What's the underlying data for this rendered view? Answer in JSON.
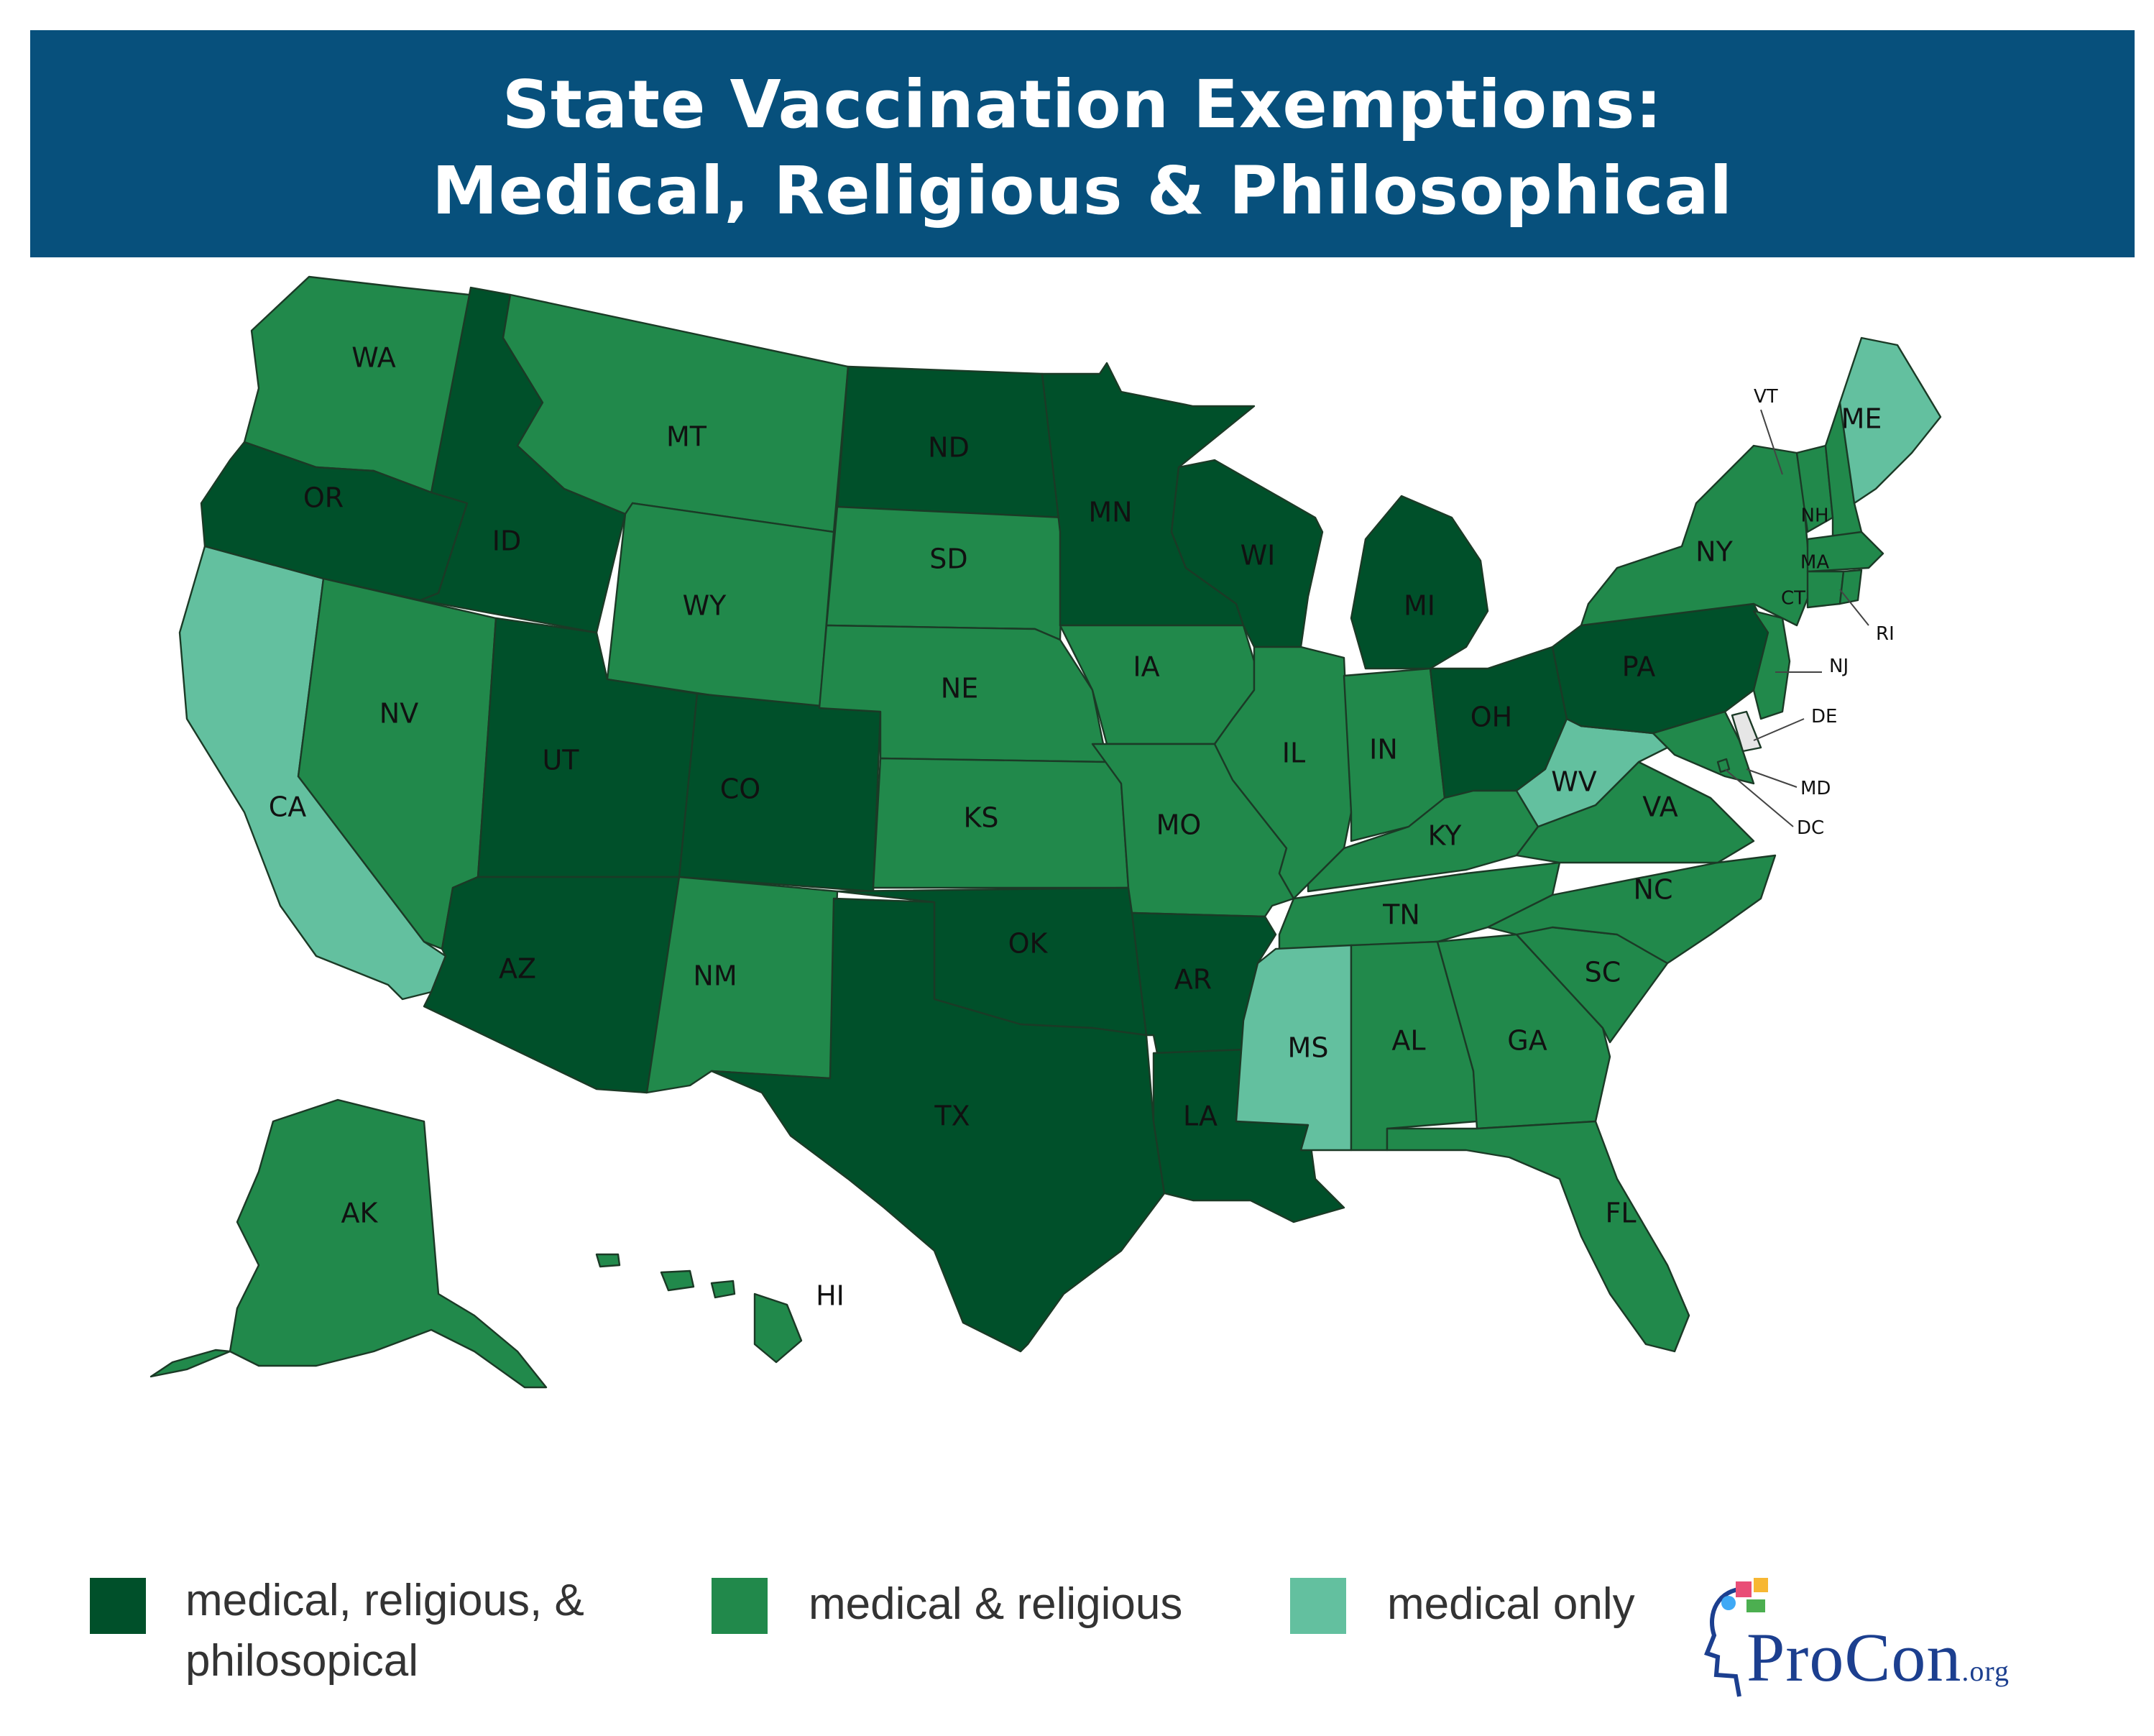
{
  "title": {
    "line1": "State Vaccination Exemptions:",
    "line2": "Medical, Religious & Philosophical"
  },
  "colors": {
    "banner": "#07507c",
    "medical_religious_philosophical": "#00502a",
    "medical_religious": "#21894b",
    "medical_only": "#63c09f",
    "dc_other": "#e6e6e6"
  },
  "legend": [
    {
      "key": "medical_religious_philosophical",
      "line1": "medical, religious, &",
      "line2": "philosopical"
    },
    {
      "key": "medical_religious",
      "line1": "medical & religious",
      "line2": ""
    },
    {
      "key": "medical_only",
      "line1": "medical only",
      "line2": ""
    }
  ],
  "logo": {
    "main": "ProCon",
    "suffix": ".org",
    "icon": "procon-head-logo-icon"
  },
  "states": [
    {
      "abbr": "WA",
      "category": "medical_religious"
    },
    {
      "abbr": "OR",
      "category": "medical_religious_philosophical"
    },
    {
      "abbr": "CA",
      "category": "medical_only"
    },
    {
      "abbr": "ID",
      "category": "medical_religious_philosophical"
    },
    {
      "abbr": "NV",
      "category": "medical_religious"
    },
    {
      "abbr": "MT",
      "category": "medical_religious"
    },
    {
      "abbr": "WY",
      "category": "medical_religious"
    },
    {
      "abbr": "UT",
      "category": "medical_religious_philosophical"
    },
    {
      "abbr": "AZ",
      "category": "medical_religious_philosophical"
    },
    {
      "abbr": "CO",
      "category": "medical_religious_philosophical"
    },
    {
      "abbr": "NM",
      "category": "medical_religious"
    },
    {
      "abbr": "ND",
      "category": "medical_religious_philosophical"
    },
    {
      "abbr": "SD",
      "category": "medical_religious"
    },
    {
      "abbr": "NE",
      "category": "medical_religious"
    },
    {
      "abbr": "KS",
      "category": "medical_religious"
    },
    {
      "abbr": "OK",
      "category": "medical_religious_philosophical"
    },
    {
      "abbr": "TX",
      "category": "medical_religious_philosophical"
    },
    {
      "abbr": "MN",
      "category": "medical_religious_philosophical"
    },
    {
      "abbr": "IA",
      "category": "medical_religious"
    },
    {
      "abbr": "MO",
      "category": "medical_religious"
    },
    {
      "abbr": "AR",
      "category": "medical_religious_philosophical"
    },
    {
      "abbr": "LA",
      "category": "medical_religious_philosophical"
    },
    {
      "abbr": "WI",
      "category": "medical_religious_philosophical"
    },
    {
      "abbr": "IL",
      "category": "medical_religious"
    },
    {
      "abbr": "MI",
      "category": "medical_religious_philosophical"
    },
    {
      "abbr": "IN",
      "category": "medical_religious"
    },
    {
      "abbr": "OH",
      "category": "medical_religious_philosophical"
    },
    {
      "abbr": "KY",
      "category": "medical_religious"
    },
    {
      "abbr": "TN",
      "category": "medical_religious"
    },
    {
      "abbr": "MS",
      "category": "medical_only"
    },
    {
      "abbr": "AL",
      "category": "medical_religious"
    },
    {
      "abbr": "GA",
      "category": "medical_religious"
    },
    {
      "abbr": "FL",
      "category": "medical_religious"
    },
    {
      "abbr": "SC",
      "category": "medical_religious"
    },
    {
      "abbr": "NC",
      "category": "medical_religious"
    },
    {
      "abbr": "VA",
      "category": "medical_religious"
    },
    {
      "abbr": "WV",
      "category": "medical_only"
    },
    {
      "abbr": "PA",
      "category": "medical_religious_philosophical"
    },
    {
      "abbr": "NY",
      "category": "medical_religious"
    },
    {
      "abbr": "VT",
      "category": "medical_religious"
    },
    {
      "abbr": "NH",
      "category": "medical_religious"
    },
    {
      "abbr": "ME",
      "category": "medical_only"
    },
    {
      "abbr": "MA",
      "category": "medical_religious"
    },
    {
      "abbr": "CT",
      "category": "medical_religious"
    },
    {
      "abbr": "RI",
      "category": "medical_religious"
    },
    {
      "abbr": "NJ",
      "category": "medical_religious"
    },
    {
      "abbr": "DE",
      "category": "dc_other"
    },
    {
      "abbr": "MD",
      "category": "medical_religious"
    },
    {
      "abbr": "DC",
      "category": "medical_religious"
    },
    {
      "abbr": "AK",
      "category": "medical_religious"
    },
    {
      "abbr": "HI",
      "category": "medical_religious"
    }
  ]
}
